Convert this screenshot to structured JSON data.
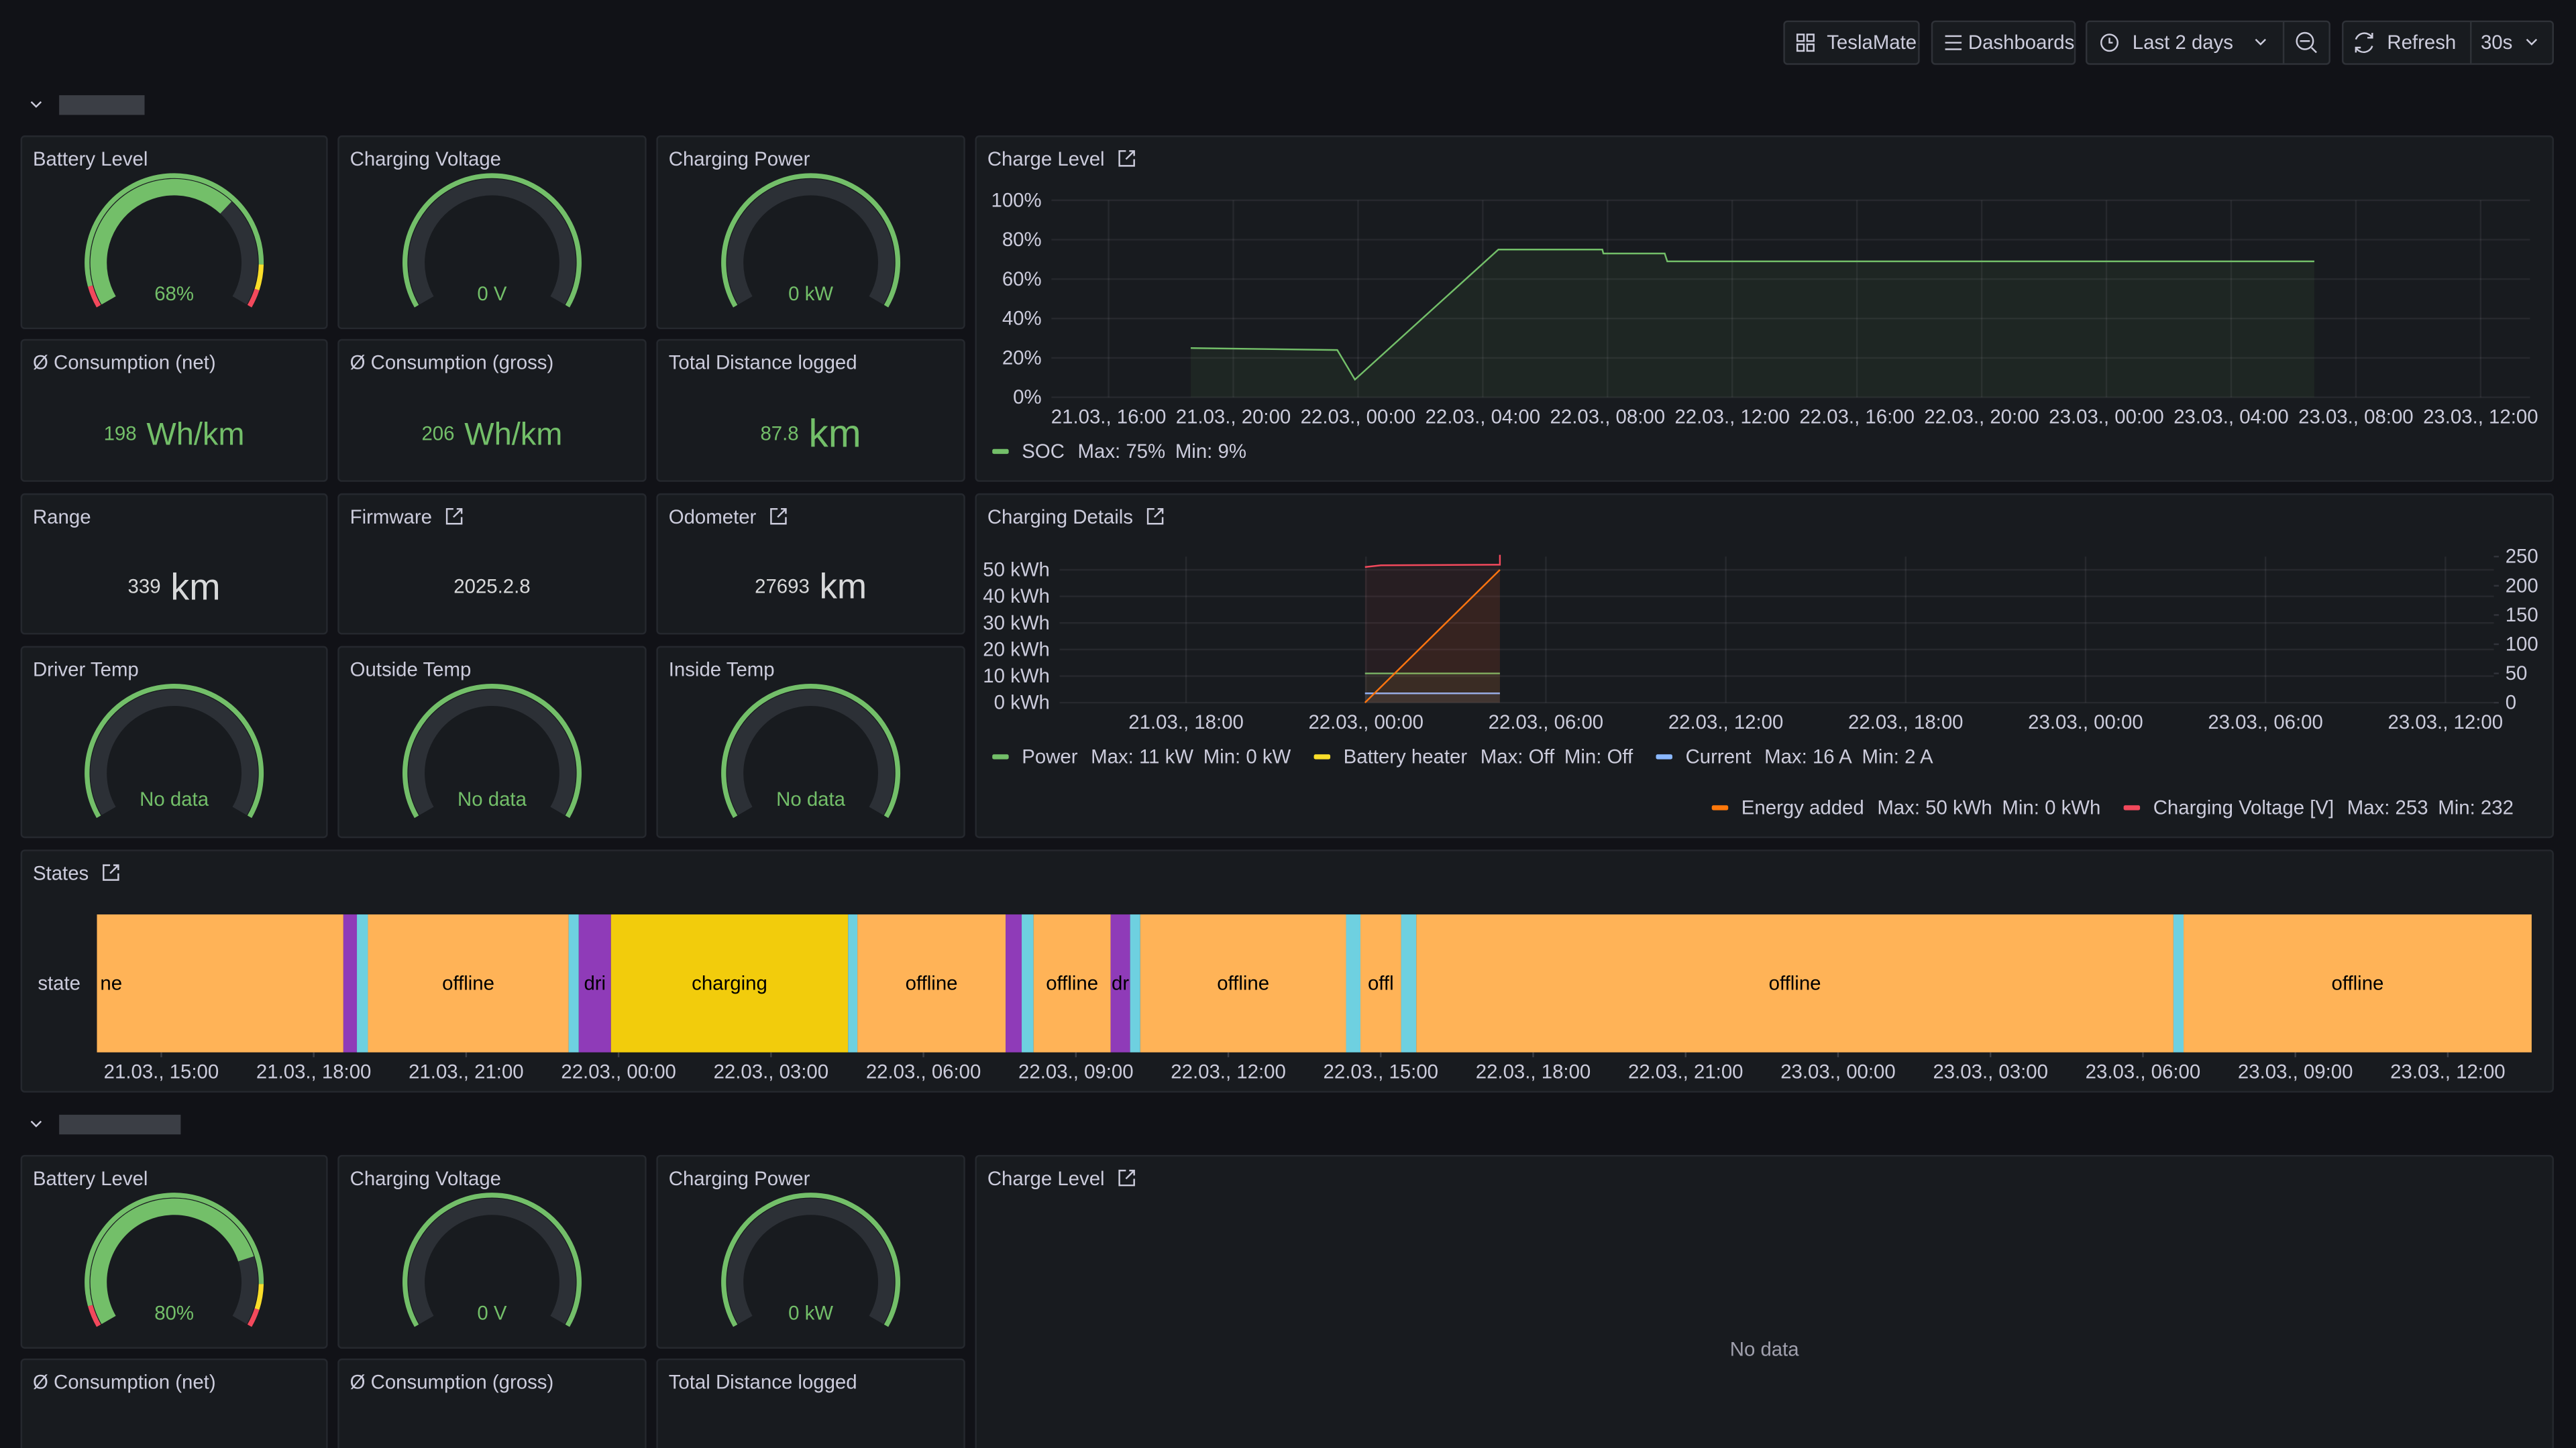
{
  "toolbar": {
    "dashboard_button": "TeslaMate",
    "dashboards_button": "Dashboards",
    "time_range": "Last 2 days",
    "refresh_button": "Refresh",
    "refresh_interval": "30s"
  },
  "rows": [
    {
      "gauges": [
        {
          "title": "Battery Level",
          "value": {
            "value": 68,
            "label": "68%"
          },
          "range": [
            0,
            100
          ],
          "color": "#73bf69",
          "band_colors": [
            "#f2495c",
            "#73bf69",
            "#fade2a",
            "#f2495c"
          ]
        },
        {
          "title": "Charging Voltage",
          "value": {
            "value": 0,
            "label": "0 V"
          },
          "range": [
            0,
            250
          ],
          "color": "#73bf69",
          "band_colors": [
            "#73bf69"
          ]
        },
        {
          "title": "Charging Power",
          "value": {
            "value": 0,
            "label": "0 kW"
          },
          "range": [
            0,
            11
          ],
          "color": "#73bf69",
          "band_colors": [
            "#73bf69"
          ]
        }
      ],
      "stats": [
        {
          "title": "Ø Consumption (net)",
          "value": 198,
          "unit": "Wh/km",
          "color": "#73bf69"
        },
        {
          "title": "Ø Consumption (gross)",
          "value": 206,
          "unit": "Wh/km",
          "color": "#73bf69"
        },
        {
          "title": "Total Distance logged",
          "value": 87.8,
          "unit": "km",
          "color": "#73bf69"
        }
      ],
      "info": [
        {
          "title": "Range",
          "value": 339,
          "unit": "km",
          "color": "#d8d9da"
        },
        {
          "title": "Firmware",
          "value": "2025.2.8",
          "color": "#d8d9da",
          "link": true
        },
        {
          "title": "Odometer",
          "value": 27693,
          "unit": "km",
          "color": "#d8d9da",
          "link": true
        }
      ],
      "temps": [
        {
          "title": "Driver Temp",
          "text": "No data",
          "color": "#73bf69",
          "band_colors": [
            "#73bf69"
          ]
        },
        {
          "title": "Outside Temp",
          "text": "No data",
          "color": "#73bf69",
          "band_colors": [
            "#73bf69"
          ]
        },
        {
          "title": "Inside Temp",
          "text": "No data",
          "color": "#73bf69",
          "band_colors": [
            "#73bf69"
          ]
        }
      ],
      "charge_level": {
        "type": "line",
        "title": "Charge Level",
        "link": true,
        "x": [
          "21.03., 18:38",
          "21.03., 23:20",
          "21.03., 23:54",
          "22.03., 04:30",
          "22.03., 07:50",
          "22.03., 07:52",
          "22.03., 09:50",
          "22.03., 09:55",
          "23.03., 06:40"
        ],
        "series": [
          {
            "name": "SOC",
            "color": "#73bf69",
            "values": [
              25,
              24,
              9,
              75,
              75,
              73,
              73,
              69,
              69
            ],
            "legend_stats": [
              "Max: 75%",
              "Min: 9%"
            ]
          }
        ],
        "xlim": [
          "21.03., 14:10",
          "23.03., 13:35"
        ],
        "xticks": [
          "21.03., 16:00",
          "21.03., 20:00",
          "22.03., 00:00",
          "22.03., 04:00",
          "22.03., 08:00",
          "22.03., 12:00",
          "22.03., 16:00",
          "22.03., 20:00",
          "23.03., 00:00",
          "23.03., 04:00",
          "23.03., 08:00",
          "23.03., 12:00"
        ],
        "ylim": [
          0,
          100
        ],
        "yticks": [
          {
            "value": 0,
            "label": "0%"
          },
          {
            "value": 20,
            "label": "20%"
          },
          {
            "value": 40,
            "label": "40%"
          },
          {
            "value": 60,
            "label": "60%"
          },
          {
            "value": 80,
            "label": "80%"
          },
          {
            "value": 100,
            "label": "100%"
          }
        ],
        "grid": true
      },
      "charging_details": {
        "type": "line",
        "title": "Charging Details",
        "link": true,
        "series": [
          {
            "name": "Power",
            "color": "#73bf69",
            "x": [
              "21.03., 23:58",
              "22.03., 04:28"
            ],
            "values": [
              11,
              11
            ],
            "legend_stats": [
              "Max: 11 kW",
              "Min: 0 kW"
            ]
          },
          {
            "name": "Battery heater",
            "color": "#fade2a",
            "x": [],
            "values": [],
            "legend_stats": [
              "Max: Off",
              "Min: Off"
            ]
          },
          {
            "name": "Current",
            "color": "#8ab8ff",
            "axis": "y2",
            "x": [
              "21.03., 23:58",
              "22.03., 04:28"
            ],
            "values": [
              16,
              16
            ],
            "legend_stats": [
              "Max: 16 A",
              "Min: 2 A"
            ]
          },
          {
            "name": "Energy added",
            "color": "#ff780a",
            "x": [
              "21.03., 23:58",
              "22.03., 04:28"
            ],
            "values": [
              0,
              50
            ],
            "legend_stats": [
              "Max: 50 kWh",
              "Min: 0 kWh"
            ]
          },
          {
            "name": "Charging Voltage [V]",
            "color": "#f2495c",
            "axis": "y2",
            "x": [
              "21.03., 23:58",
              "22.03., 00:30",
              "22.03., 04:20",
              "22.03., 04:28",
              "22.03., 04:28"
            ],
            "values": [
              232,
              235,
              236,
              236,
              253
            ],
            "legend_stats": [
              "Max: 253",
              "Min: 232"
            ]
          }
        ],
        "xlim": [
          "21.03., 13:47",
          "23.03., 13:37"
        ],
        "xticks": [
          "21.03., 18:00",
          "22.03., 00:00",
          "22.03., 06:00",
          "22.03., 12:00",
          "22.03., 18:00",
          "23.03., 00:00",
          "23.03., 06:00",
          "23.03., 12:00"
        ],
        "ylim": [
          0,
          55
        ],
        "yticks": [
          {
            "value": 0,
            "label": "0 kWh"
          },
          {
            "value": 10,
            "label": "10 kWh"
          },
          {
            "value": 20,
            "label": "20 kWh"
          },
          {
            "value": 30,
            "label": "30 kWh"
          },
          {
            "value": 40,
            "label": "40 kWh"
          },
          {
            "value": 50,
            "label": "50 kWh"
          }
        ],
        "y2lim": [
          0,
          250
        ],
        "y2ticks": [
          0,
          50,
          100,
          150,
          200,
          250
        ],
        "grid": true
      },
      "states": {
        "type": "state-timeline",
        "title": "States",
        "link": true,
        "row_label": "state",
        "xlim": [
          "21.03., 13:44",
          "23.03., 13:39"
        ],
        "xticks": [
          "21.03., 15:00",
          "21.03., 18:00",
          "21.03., 21:00",
          "22.03., 00:00",
          "22.03., 03:00",
          "22.03., 06:00",
          "22.03., 09:00",
          "22.03., 12:00",
          "22.03., 15:00",
          "22.03., 18:00",
          "22.03., 21:00",
          "23.03., 00:00",
          "23.03., 03:00",
          "23.03., 06:00",
          "23.03., 09:00",
          "23.03., 12:00"
        ],
        "segments": [
          {
            "start": "21.03., 13:44",
            "end": "21.03., 18:35",
            "label": "ne",
            "color": "#ffb357"
          },
          {
            "start": "21.03., 18:35",
            "end": "21.03., 18:51",
            "label": null,
            "color": "#8f3bb8"
          },
          {
            "start": "21.03., 18:51",
            "end": "21.03., 19:04",
            "label": null,
            "color": "#6ed0e0"
          },
          {
            "start": "21.03., 19:04",
            "end": "21.03., 23:01",
            "label": "offline",
            "color": "#ffb357"
          },
          {
            "start": "21.03., 23:01",
            "end": "21.03., 23:13",
            "label": null,
            "color": "#6ed0e0"
          },
          {
            "start": "21.03., 23:13",
            "end": "21.03., 23:51",
            "label": "dri",
            "color": "#8f3bb8"
          },
          {
            "start": "21.03., 23:51",
            "end": "22.03., 04:31",
            "label": "charging",
            "color": "#f2cc0c"
          },
          {
            "start": "22.03., 04:31",
            "end": "22.03., 04:42",
            "label": null,
            "color": "#6ed0e0"
          },
          {
            "start": "22.03., 04:42",
            "end": "22.03., 07:37",
            "label": "offline",
            "color": "#ffb357"
          },
          {
            "start": "22.03., 07:37",
            "end": "22.03., 07:56",
            "label": null,
            "color": "#8f3bb8"
          },
          {
            "start": "22.03., 07:56",
            "end": "22.03., 08:10",
            "label": null,
            "color": "#6ed0e0"
          },
          {
            "start": "22.03., 08:10",
            "end": "22.03., 09:41",
            "label": "offline",
            "color": "#ffb357"
          },
          {
            "start": "22.03., 09:41",
            "end": "22.03., 10:04",
            "label": "dr",
            "color": "#8f3bb8"
          },
          {
            "start": "22.03., 10:04",
            "end": "22.03., 10:16",
            "label": null,
            "color": "#6ed0e0"
          },
          {
            "start": "22.03., 10:16",
            "end": "22.03., 14:19",
            "label": "offline",
            "color": "#ffb357"
          },
          {
            "start": "22.03., 14:19",
            "end": "22.03., 14:36",
            "label": null,
            "color": "#6ed0e0"
          },
          {
            "start": "22.03., 14:36",
            "end": "22.03., 15:24",
            "label": "offl",
            "color": "#ffb357"
          },
          {
            "start": "22.03., 15:24",
            "end": "22.03., 15:42",
            "label": null,
            "color": "#6ed0e0"
          },
          {
            "start": "22.03., 15:42",
            "end": "23.03., 06:36",
            "label": "offline",
            "color": "#ffb357"
          },
          {
            "start": "23.03., 06:36",
            "end": "23.03., 06:48",
            "label": null,
            "color": "#6ed0e0"
          },
          {
            "start": "23.03., 06:48",
            "end": "23.03., 13:39",
            "label": "offline",
            "color": "#ffb357"
          }
        ]
      }
    },
    {
      "gauges": [
        {
          "title": "Battery Level",
          "value": {
            "value": 80,
            "label": "80%"
          },
          "range": [
            0,
            100
          ],
          "color": "#73bf69",
          "band_colors": [
            "#f2495c",
            "#73bf69",
            "#fade2a",
            "#f2495c"
          ]
        },
        {
          "title": "Charging Voltage",
          "value": {
            "value": 0,
            "label": "0 V"
          },
          "range": [
            0,
            250
          ],
          "color": "#73bf69",
          "band_colors": [
            "#73bf69"
          ]
        },
        {
          "title": "Charging Power",
          "value": {
            "value": 0,
            "label": "0 kW"
          },
          "range": [
            0,
            11
          ],
          "color": "#73bf69",
          "band_colors": [
            "#73bf69"
          ]
        }
      ],
      "stats": [
        {
          "title": "Ø Consumption (net)"
        },
        {
          "title": "Ø Consumption (gross)"
        },
        {
          "title": "Total Distance logged"
        }
      ],
      "charge_level": {
        "title": "Charge Level",
        "link": true,
        "text": "No data"
      }
    }
  ]
}
